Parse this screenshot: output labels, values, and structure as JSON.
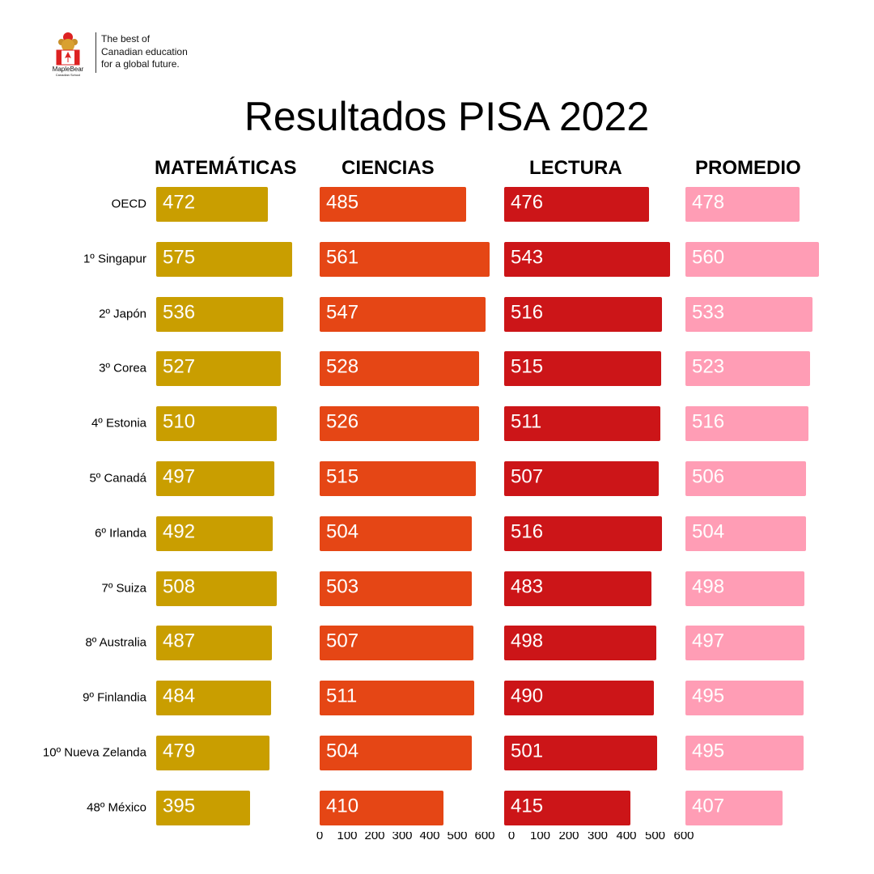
{
  "logo": {
    "brand": "MapleBear",
    "sub": "Canadian School"
  },
  "tagline": [
    "The best of",
    "Canadian education",
    "for a global future."
  ],
  "title": "Resultados PISA 2022",
  "chart_data": {
    "type": "bar",
    "orientation": "horizontal",
    "title": "Resultados PISA 2022",
    "categories": [
      "OECD",
      "1º Singapur",
      "2º Japón",
      "3º Corea",
      "4º Estonia",
      "5º Canadá",
      "6º Irlanda",
      "7º Suiza",
      "8º Australia",
      "9º Finlandia",
      "10º Nueva Zelanda",
      "48º México"
    ],
    "series": [
      {
        "name": "MATEMÁTICAS",
        "color": "#C99E00",
        "values": [
          472,
          575,
          536,
          527,
          510,
          497,
          492,
          508,
          487,
          484,
          479,
          395
        ]
      },
      {
        "name": "CIENCIAS",
        "color": "#E54615",
        "values": [
          485,
          561,
          547,
          528,
          526,
          515,
          504,
          503,
          507,
          511,
          504,
          410
        ]
      },
      {
        "name": "LECTURA",
        "color": "#CC1518",
        "values": [
          476,
          543,
          516,
          515,
          511,
          507,
          516,
          483,
          498,
          490,
          501,
          415
        ]
      },
      {
        "name": "PROMEDIO",
        "color": "#FF9DB5",
        "values": [
          478,
          560,
          533,
          523,
          516,
          506,
          504,
          498,
          497,
          495,
          495,
          407
        ]
      }
    ],
    "axis_ticks": [
      "0",
      "100",
      "200",
      "300",
      "400",
      "500",
      "600"
    ],
    "xlim": [
      0,
      600
    ],
    "grid": false
  }
}
